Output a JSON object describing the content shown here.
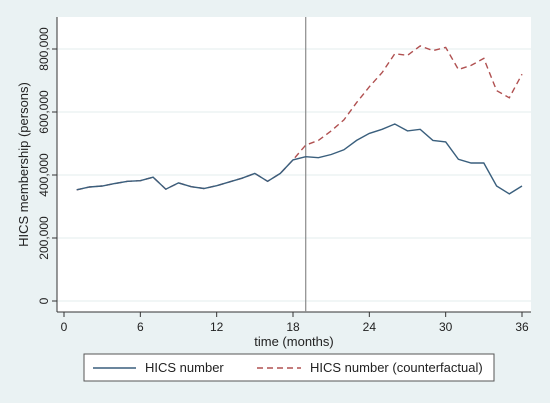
{
  "chart_data": {
    "type": "line",
    "title": "",
    "xlabel": "time (months)",
    "ylabel": "HICS membership (persons)",
    "xlim": [
      0,
      36
    ],
    "ylim": [
      0,
      800000
    ],
    "x_ticks": [
      0,
      6,
      12,
      18,
      24,
      30,
      36
    ],
    "x_tick_labels": [
      "0",
      "6",
      "12",
      "18",
      "24",
      "30",
      "36"
    ],
    "y_ticks": [
      0,
      200000,
      400000,
      600000,
      800000
    ],
    "y_tick_labels": [
      "0",
      "200,000",
      "400,000",
      "600,000",
      "800,000"
    ],
    "grid": "horizontal",
    "vertical_reference_line_x": 19,
    "legend_position": "bottom",
    "colors": {
      "background": "#eaf2f3",
      "plot_background": "#ffffff",
      "series_1": "#3a5f7d",
      "series_2": "#b05050",
      "reference_line": "#8a8a8a",
      "grid": "#e3ecee"
    },
    "series": [
      {
        "name": "HICS number",
        "style": "solid",
        "x": [
          1,
          2,
          3,
          4,
          5,
          6,
          7,
          8,
          9,
          10,
          11,
          12,
          13,
          14,
          15,
          16,
          17,
          18,
          19,
          20,
          21,
          22,
          23,
          24,
          25,
          26,
          27,
          28,
          29,
          30,
          31,
          32,
          33,
          34,
          35,
          36
        ],
        "values": [
          353000,
          362000,
          365000,
          373000,
          380000,
          382000,
          393000,
          355000,
          375000,
          363000,
          357000,
          366000,
          378000,
          390000,
          405000,
          380000,
          405000,
          448000,
          458000,
          455000,
          465000,
          480000,
          510000,
          532000,
          545000,
          562000,
          540000,
          545000,
          510000,
          505000,
          450000,
          438000,
          438000,
          365000,
          340000,
          365000
        ]
      },
      {
        "name": "HICS number (counterfactual)",
        "style": "dashed",
        "x": [
          1,
          2,
          3,
          4,
          5,
          6,
          7,
          8,
          9,
          10,
          11,
          12,
          13,
          14,
          15,
          16,
          17,
          18,
          19,
          20,
          21,
          22,
          23,
          24,
          25,
          26,
          27,
          28,
          29,
          30,
          31,
          32,
          33,
          34,
          35,
          36
        ],
        "values": [
          353000,
          362000,
          365000,
          373000,
          380000,
          382000,
          393000,
          355000,
          375000,
          363000,
          357000,
          366000,
          378000,
          390000,
          405000,
          380000,
          405000,
          448000,
          495000,
          510000,
          540000,
          575000,
          630000,
          680000,
          725000,
          785000,
          780000,
          810000,
          795000,
          805000,
          735000,
          748000,
          770000,
          668000,
          645000,
          720000
        ]
      }
    ]
  }
}
